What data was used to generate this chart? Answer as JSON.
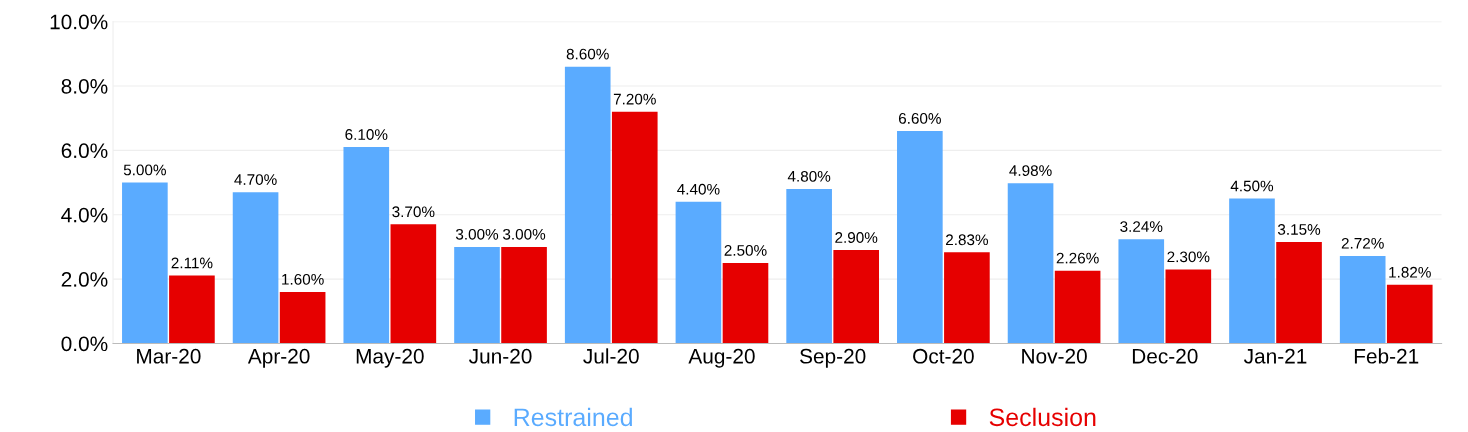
{
  "chart_data": {
    "type": "bar",
    "categories": [
      "Mar-20",
      "Apr-20",
      "May-20",
      "Jun-20",
      "Jul-20",
      "Aug-20",
      "Sep-20",
      "Oct-20",
      "Nov-20",
      "Dec-20",
      "Jan-21",
      "Feb-21"
    ],
    "series": [
      {
        "name": "Restrained",
        "color": "#5aabff",
        "values": [
          5.0,
          4.7,
          6.1,
          3.0,
          8.6,
          4.4,
          4.8,
          6.6,
          4.98,
          3.24,
          4.5,
          2.72
        ],
        "value_labels": [
          "5.00%",
          "4.70%",
          "6.10%",
          "3.00%",
          "8.60%",
          "4.40%",
          "4.80%",
          "6.60%",
          "4.98%",
          "3.24%",
          "4.50%",
          "2.72%"
        ]
      },
      {
        "name": "Seclusion",
        "color": "#e60000",
        "values": [
          2.11,
          1.6,
          3.7,
          3.0,
          7.2,
          2.5,
          2.9,
          2.83,
          2.26,
          2.3,
          3.15,
          1.82
        ],
        "value_labels": [
          "2.11%",
          "1.60%",
          "3.70%",
          "3.00%",
          "7.20%",
          "2.50%",
          "2.90%",
          "2.83%",
          "2.26%",
          "2.30%",
          "3.15%",
          "1.82%"
        ]
      }
    ],
    "ylim": [
      0,
      10
    ],
    "yticks": [
      {
        "value": 0,
        "label": "0.0%"
      },
      {
        "value": 2,
        "label": "2.0%"
      },
      {
        "value": 4,
        "label": "4.0%"
      },
      {
        "value": 6,
        "label": "6.0%"
      },
      {
        "value": 8,
        "label": "8.0%"
      },
      {
        "value": 10,
        "label": "10.0%"
      }
    ],
    "grid": "y",
    "legend": "bottom",
    "marker": "square"
  }
}
